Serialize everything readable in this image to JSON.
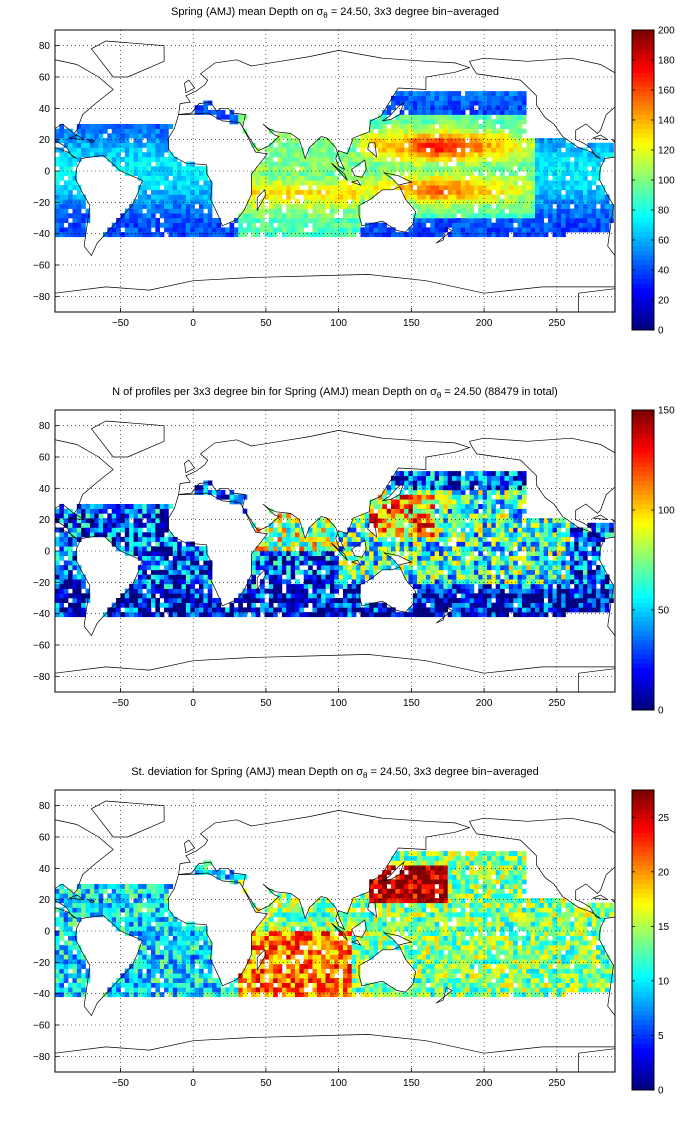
{
  "chart_data": [
    {
      "type": "heatmap",
      "title_pre": "Spring (AMJ) mean Depth on ",
      "title_sigma": "σ",
      "title_sub": "θ",
      "title_post": " = 24.50, 3x3 degree bin−averaged",
      "xlim": [
        -95,
        290
      ],
      "ylim": [
        -90,
        90
      ],
      "x_ticks": [
        -50,
        0,
        50,
        100,
        150,
        200,
        250
      ],
      "y_ticks": [
        -80,
        -60,
        -40,
        -20,
        0,
        20,
        40,
        60,
        80
      ],
      "grid": true,
      "colorbar": {
        "min": 0,
        "max": 200,
        "ticks": [
          0,
          20,
          40,
          60,
          80,
          100,
          120,
          140,
          160,
          180,
          200
        ]
      },
      "field": "depth"
    },
    {
      "type": "heatmap",
      "title_pre": "N of profiles per 3x3 degree bin for Spring (AMJ) mean Depth on ",
      "title_sigma": "σ",
      "title_sub": "θ",
      "title_post": " = 24.50 (88479 in total)",
      "xlim": [
        -95,
        290
      ],
      "ylim": [
        -90,
        90
      ],
      "x_ticks": [
        -50,
        0,
        50,
        100,
        150,
        200,
        250
      ],
      "y_ticks": [
        -80,
        -60,
        -40,
        -20,
        0,
        20,
        40,
        60,
        80
      ],
      "grid": true,
      "colorbar": {
        "min": 0,
        "max": 150,
        "ticks": [
          0,
          50,
          100,
          150
        ]
      },
      "field": "count"
    },
    {
      "type": "heatmap",
      "title_pre": "St. deviation for Spring (AMJ) mean Depth on ",
      "title_sigma": "σ",
      "title_sub": "θ",
      "title_post": " = 24.50, 3x3 degree bin−averaged",
      "xlim": [
        -95,
        290
      ],
      "ylim": [
        -90,
        90
      ],
      "x_ticks": [
        -50,
        0,
        50,
        100,
        150,
        200,
        250
      ],
      "y_ticks": [
        -80,
        -60,
        -40,
        -20,
        0,
        20,
        40,
        60,
        80
      ],
      "grid": true,
      "colorbar": {
        "min": 0,
        "max": 27.5,
        "ticks": [
          0,
          5,
          10,
          15,
          20,
          25
        ]
      },
      "field": "std"
    }
  ]
}
